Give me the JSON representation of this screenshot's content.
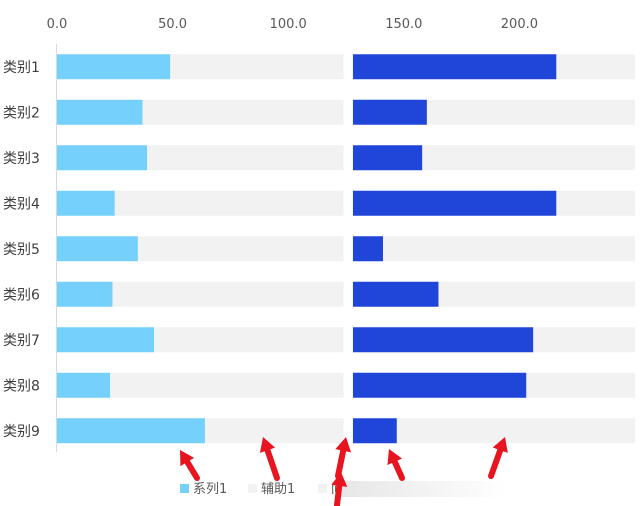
{
  "chart_data": {
    "type": "bar",
    "orientation": "horizontal",
    "stacked": true,
    "categories": [
      "类别1",
      "类别2",
      "类别3",
      "类别4",
      "类别5",
      "类别6",
      "类别7",
      "类别8",
      "类别9"
    ],
    "x_ticks": [
      "0.0",
      "50.0",
      "100.0",
      "150.0",
      "200.0"
    ],
    "xlim": [
      0,
      250
    ],
    "series": [
      {
        "name": "系列1",
        "color": "#75D1FB",
        "values": [
          49,
          37,
          39,
          25,
          35,
          24,
          42,
          23,
          64
        ]
      },
      {
        "name": "辅助1",
        "color": "#F2F2F2",
        "values": [
          75,
          87,
          85,
          99,
          89,
          100,
          82,
          101,
          60
        ]
      },
      {
        "name": "",
        "color": "#FFFFFF",
        "values": [
          4,
          4,
          4,
          4,
          4,
          4,
          4,
          4,
          4
        ]
      },
      {
        "name": "",
        "color": "#1F45D9",
        "values": [
          88,
          32,
          30,
          88,
          13,
          37,
          78,
          75,
          19
        ]
      },
      {
        "name": "",
        "color": "#F2F2F2",
        "values": [
          34,
          90,
          92,
          34,
          109,
          85,
          44,
          47,
          103
        ]
      }
    ],
    "legend_labels": [
      "系列1",
      "辅助1",
      "间"
    ],
    "legend_position": "bottom",
    "grid": false
  },
  "annotations": {
    "arrow_color": "#E8141F",
    "arrow_count": 6
  }
}
